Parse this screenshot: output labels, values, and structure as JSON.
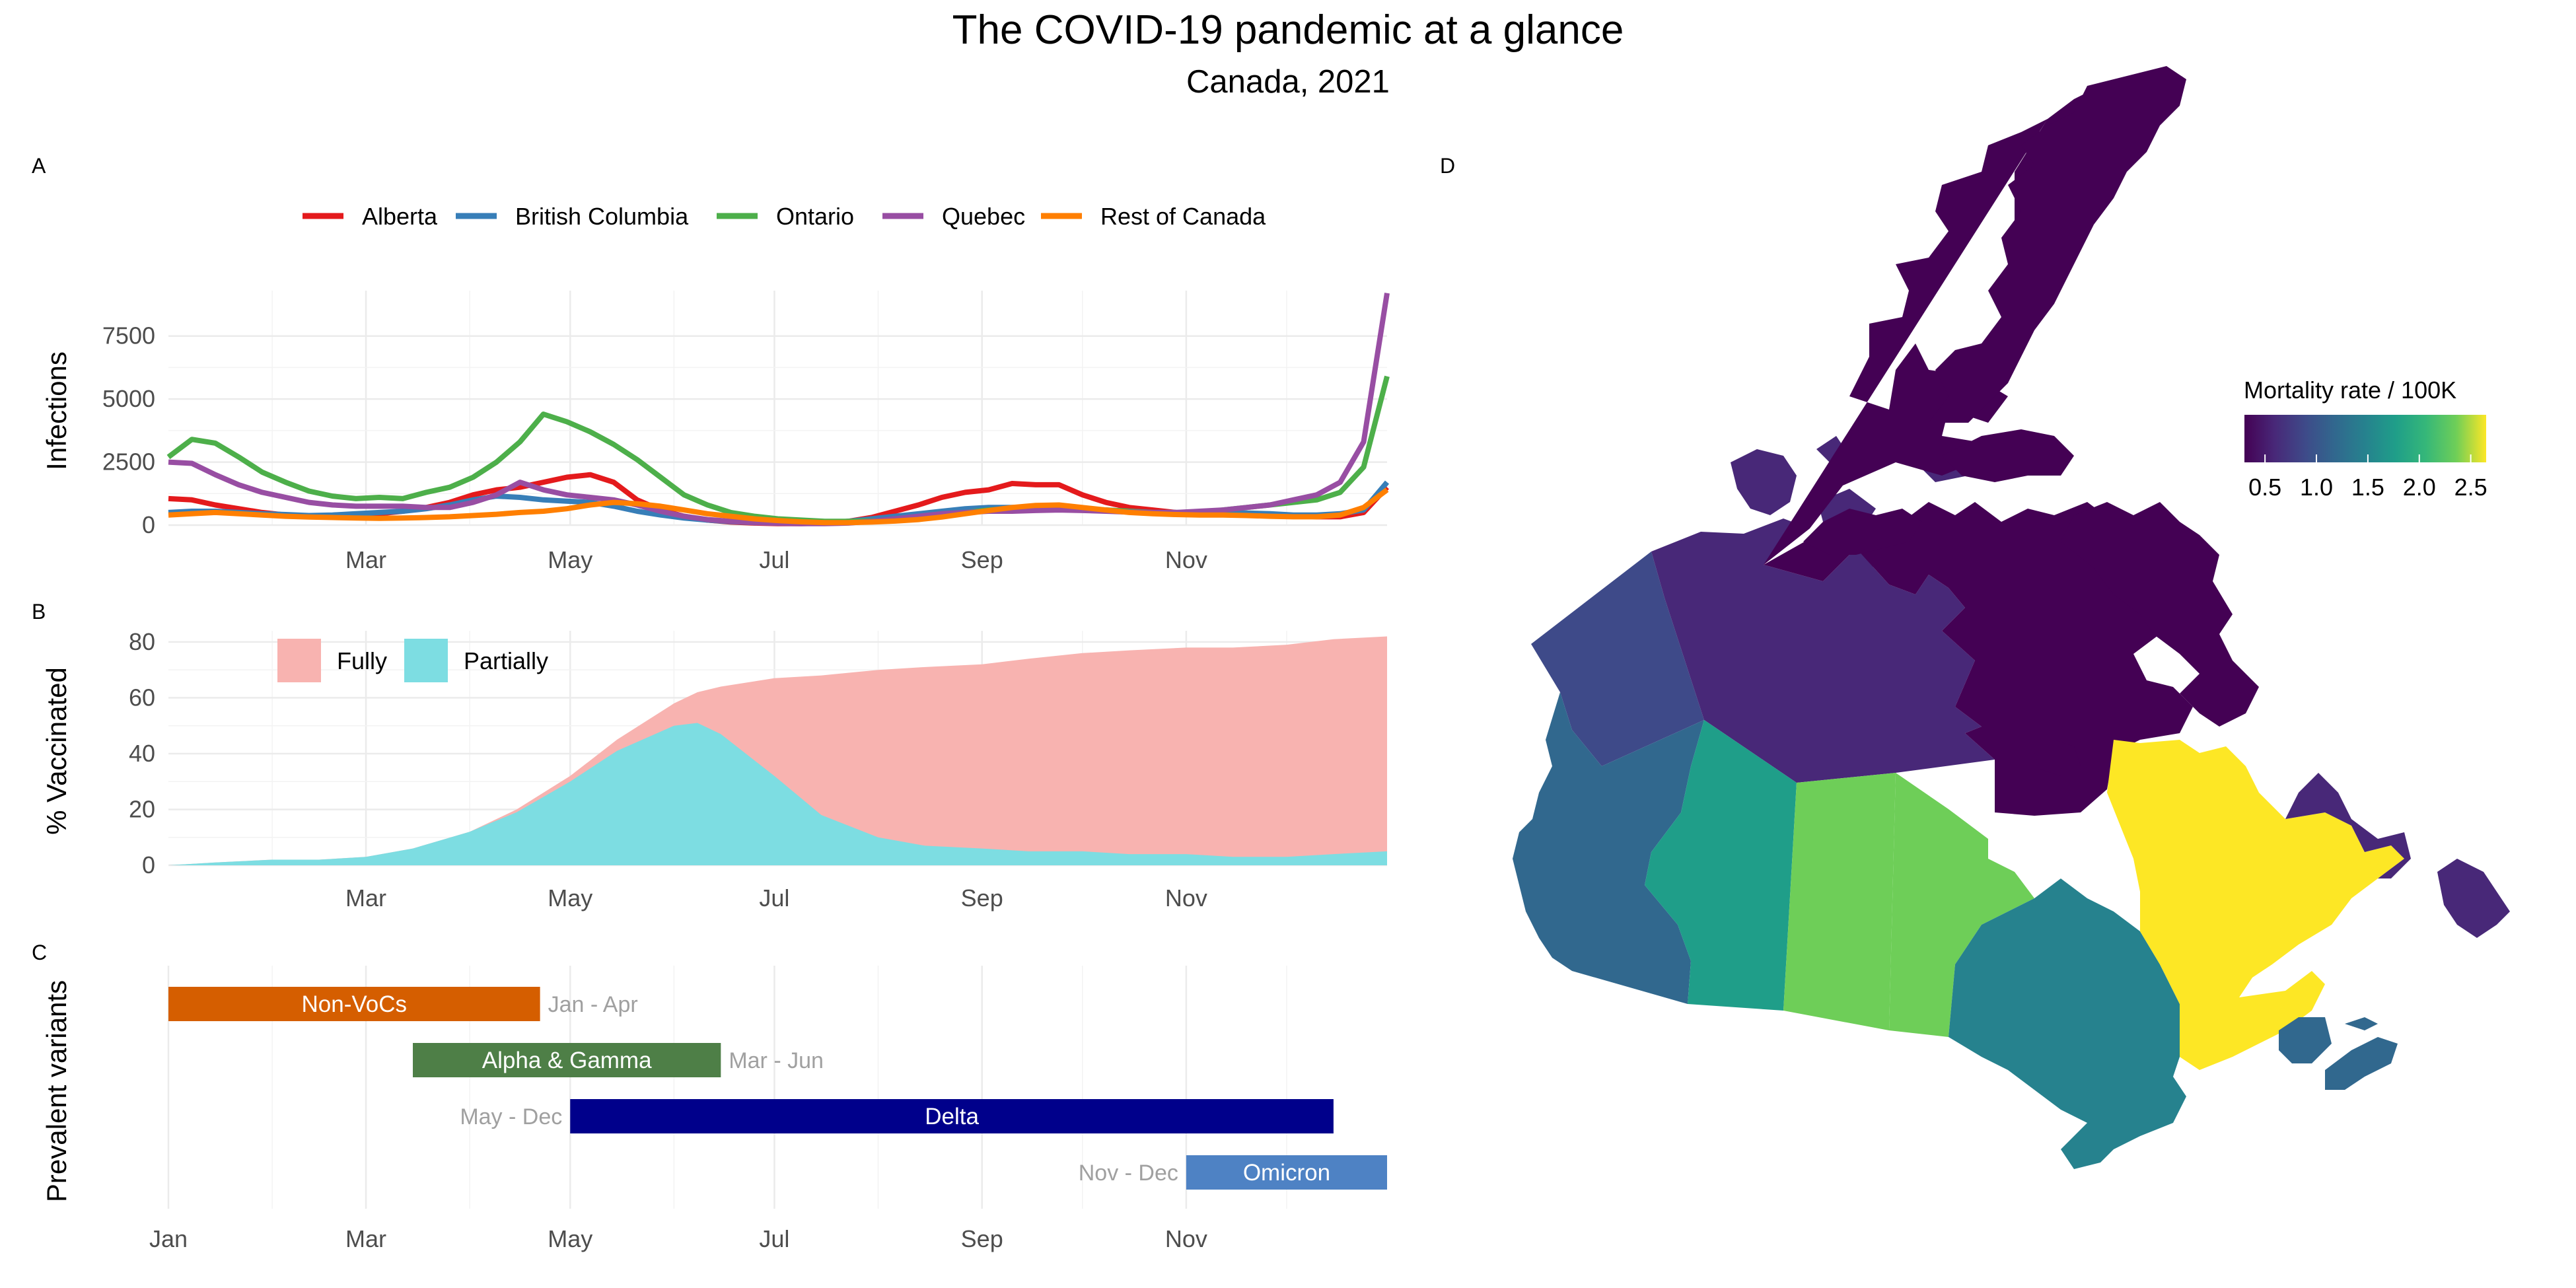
{
  "title": "The COVID-19 pandemic at a glance",
  "subtitle": "Canada, 2021",
  "colors": {
    "Alberta": "#e41a1c",
    "British Columbia": "#377eb8",
    "Ontario": "#4daf4a",
    "Quebec": "#984ea3",
    "Rest of Canada": "#ff7f00",
    "fully": "#f8b3b0",
    "partially": "#7ddde2",
    "nonvocs": "#d55e00",
    "alpha_gamma": "#4e7f47",
    "delta": "#00008b",
    "omicron": "#4e82c4"
  },
  "chart_data": [
    {
      "panel": "A",
      "type": "line",
      "xlabel": "",
      "ylabel": "Infections",
      "x_ticks": [
        "Mar",
        "May",
        "Jul",
        "Sep",
        "Nov"
      ],
      "y_ticks": [
        0,
        2500,
        5000,
        7500
      ],
      "ylim": [
        0,
        9300
      ],
      "legend_position": "top",
      "x": [
        "2021-01-01",
        "2021-01-08",
        "2021-01-15",
        "2021-01-22",
        "2021-01-29",
        "2021-02-05",
        "2021-02-12",
        "2021-02-19",
        "2021-02-26",
        "2021-03-05",
        "2021-03-12",
        "2021-03-19",
        "2021-03-26",
        "2021-04-02",
        "2021-04-09",
        "2021-04-16",
        "2021-04-23",
        "2021-04-30",
        "2021-05-07",
        "2021-05-14",
        "2021-05-21",
        "2021-05-28",
        "2021-06-04",
        "2021-06-11",
        "2021-06-18",
        "2021-06-25",
        "2021-07-02",
        "2021-07-09",
        "2021-07-16",
        "2021-07-23",
        "2021-07-30",
        "2021-08-06",
        "2021-08-13",
        "2021-08-20",
        "2021-08-27",
        "2021-09-03",
        "2021-09-10",
        "2021-09-17",
        "2021-09-24",
        "2021-10-01",
        "2021-10-08",
        "2021-10-15",
        "2021-10-22",
        "2021-10-29",
        "2021-11-05",
        "2021-11-12",
        "2021-11-19",
        "2021-11-26",
        "2021-12-03",
        "2021-12-10",
        "2021-12-17",
        "2021-12-24",
        "2021-12-31"
      ],
      "series": [
        {
          "name": "Alberta",
          "values": [
            1050,
            1000,
            800,
            650,
            500,
            400,
            350,
            330,
            380,
            450,
            550,
            700,
            900,
            1200,
            1400,
            1500,
            1700,
            1900,
            2000,
            1700,
            1000,
            600,
            350,
            200,
            120,
            80,
            60,
            60,
            80,
            150,
            300,
            550,
            800,
            1100,
            1300,
            1400,
            1650,
            1600,
            1600,
            1200,
            900,
            700,
            600,
            500,
            450,
            450,
            450,
            400,
            380,
            330,
            330,
            500,
            1500
          ]
        },
        {
          "name": "British Columbia",
          "values": [
            500,
            550,
            550,
            500,
            450,
            420,
            380,
            400,
            450,
            500,
            550,
            650,
            800,
            1000,
            1150,
            1100,
            1000,
            950,
            900,
            750,
            550,
            400,
            280,
            200,
            140,
            100,
            80,
            80,
            100,
            150,
            250,
            350,
            450,
            550,
            650,
            700,
            700,
            700,
            700,
            650,
            600,
            550,
            500,
            500,
            500,
            500,
            480,
            450,
            400,
            400,
            450,
            600,
            1700
          ]
        },
        {
          "name": "Ontario",
          "values": [
            2700,
            3400,
            3250,
            2700,
            2100,
            1700,
            1350,
            1150,
            1050,
            1100,
            1050,
            1300,
            1500,
            1900,
            2500,
            3300,
            4400,
            4100,
            3700,
            3200,
            2600,
            1900,
            1200,
            800,
            500,
            350,
            250,
            200,
            150,
            150,
            170,
            200,
            300,
            400,
            500,
            600,
            650,
            700,
            700,
            650,
            600,
            550,
            500,
            450,
            480,
            600,
            700,
            800,
            900,
            1000,
            1300,
            2300,
            5900
          ]
        },
        {
          "name": "Quebec",
          "values": [
            2500,
            2450,
            2000,
            1600,
            1300,
            1100,
            900,
            800,
            750,
            750,
            750,
            700,
            700,
            900,
            1200,
            1700,
            1400,
            1200,
            1100,
            1000,
            800,
            550,
            350,
            220,
            150,
            100,
            70,
            60,
            60,
            80,
            150,
            250,
            350,
            450,
            500,
            550,
            550,
            580,
            600,
            580,
            550,
            520,
            500,
            500,
            550,
            600,
            700,
            800,
            1000,
            1200,
            1700,
            3300,
            9200
          ]
        },
        {
          "name": "Rest of Canada",
          "values": [
            400,
            450,
            500,
            450,
            400,
            350,
            320,
            300,
            280,
            270,
            280,
            300,
            330,
            380,
            430,
            500,
            550,
            650,
            800,
            900,
            850,
            750,
            600,
            450,
            350,
            250,
            180,
            130,
            100,
            100,
            120,
            160,
            220,
            320,
            450,
            580,
            700,
            780,
            800,
            700,
            600,
            500,
            450,
            420,
            400,
            400,
            380,
            350,
            330,
            330,
            400,
            700,
            1400
          ]
        }
      ]
    },
    {
      "panel": "B",
      "type": "area",
      "xlabel": "",
      "ylabel": "% Vaccinated",
      "x_ticks": [
        "Mar",
        "May",
        "Jul",
        "Sep",
        "Nov"
      ],
      "y_ticks": [
        0,
        20,
        40,
        60,
        80
      ],
      "ylim": [
        0,
        84
      ],
      "legend_position": "top-left",
      "x": [
        "2021-01-01",
        "2021-01-15",
        "2021-02-01",
        "2021-02-15",
        "2021-03-01",
        "2021-03-15",
        "2021-04-01",
        "2021-04-15",
        "2021-05-01",
        "2021-05-15",
        "2021-06-01",
        "2021-06-08",
        "2021-06-15",
        "2021-07-01",
        "2021-07-15",
        "2021-08-01",
        "2021-08-15",
        "2021-09-01",
        "2021-09-15",
        "2021-10-01",
        "2021-10-15",
        "2021-11-01",
        "2021-11-15",
        "2021-12-01",
        "2021-12-15",
        "2021-12-31"
      ],
      "series": [
        {
          "name": "Fully",
          "values": [
            0,
            1,
            2,
            2,
            3,
            6,
            12,
            20,
            32,
            45,
            58,
            62,
            64,
            67,
            68,
            70,
            71,
            72,
            74,
            76,
            77,
            78,
            78,
            79,
            81,
            82
          ]
        },
        {
          "name": "Partially",
          "values": [
            0,
            1,
            2,
            2,
            3,
            6,
            12,
            19,
            30,
            41,
            50,
            51,
            47,
            32,
            18,
            10,
            7,
            6,
            5,
            5,
            4,
            4,
            3,
            3,
            4,
            5
          ]
        }
      ]
    },
    {
      "panel": "C",
      "type": "bar",
      "orientation": "horizontal",
      "xlabel": "",
      "ylabel": "Prevalent variants",
      "x_ticks": [
        "Jan",
        "Mar",
        "May",
        "Jul",
        "Sep",
        "Nov"
      ],
      "bars": [
        {
          "name": "Non-VoCs",
          "start": "2021-01-01",
          "end": "2021-04-22",
          "period": "Jan - Apr"
        },
        {
          "name": "Alpha & Gamma",
          "start": "2021-03-15",
          "end": "2021-06-15",
          "period": "Mar - Jun"
        },
        {
          "name": "Delta",
          "start": "2021-05-01",
          "end": "2021-12-15",
          "period": "May - Dec"
        },
        {
          "name": "Omicron",
          "start": "2021-11-01",
          "end": "2021-12-31",
          "period": "Nov - Dec"
        }
      ]
    },
    {
      "panel": "D",
      "type": "heatmap",
      "subtype": "choropleth map",
      "legend_title": "Mortality rate / 100K",
      "legend_ticks": [
        "0.5",
        "1.0",
        "1.5",
        "2.0",
        "2.5"
      ],
      "legend_range": [
        0.3,
        2.65
      ],
      "legend_position": "top-right",
      "regions": [
        {
          "region": "Yukon",
          "value": 0.85
        },
        {
          "region": "Northwest Territories",
          "value": 0.6
        },
        {
          "region": "Nunavut",
          "value": 0.35
        },
        {
          "region": "British Columbia",
          "value": 1.2
        },
        {
          "region": "Alberta",
          "value": 1.6
        },
        {
          "region": "Saskatchewan",
          "value": 2.0
        },
        {
          "region": "Manitoba",
          "value": 2.2
        },
        {
          "region": "Ontario",
          "value": 1.25
        },
        {
          "region": "Quebec",
          "value": 2.6
        },
        {
          "region": "Newfoundland and Labrador",
          "value": 0.6
        },
        {
          "region": "New Brunswick",
          "value": 1.2
        },
        {
          "region": "Nova Scotia",
          "value": 1.2
        },
        {
          "region": "Prince Edward Island",
          "value": 1.2
        }
      ]
    }
  ]
}
